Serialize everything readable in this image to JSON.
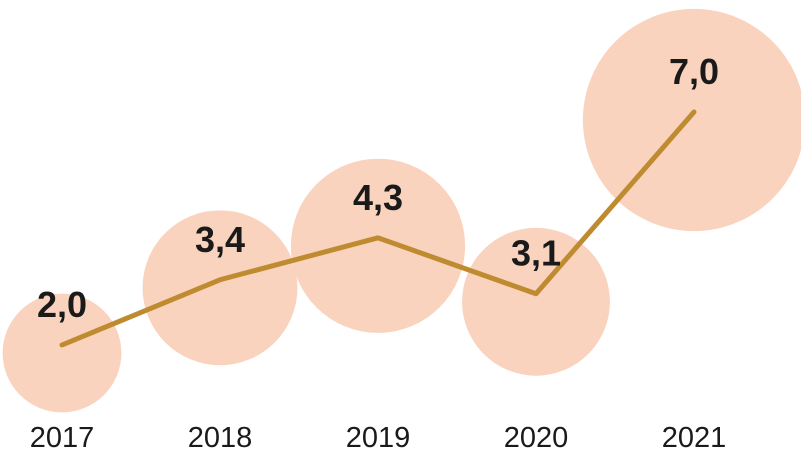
{
  "chart_data": {
    "type": "line",
    "subtype": "bubble-line",
    "title": "",
    "xlabel": "",
    "ylabel": "",
    "categories": [
      "2017",
      "2018",
      "2019",
      "2020",
      "2021"
    ],
    "values": [
      2.0,
      3.4,
      4.3,
      3.1,
      7.0
    ],
    "value_labels": [
      "2,0",
      "3,4",
      "4,3",
      "3,1",
      "7,0"
    ],
    "decimal_separator": ",",
    "ylim": [
      0,
      8
    ],
    "grid": false,
    "legend": "none",
    "bubble_size": "proportional-to-value",
    "colors": {
      "bubble": "#FAD3BE",
      "line": "#BF8B30",
      "text": "#1A1A1A",
      "background": "#FFFFFF"
    }
  }
}
